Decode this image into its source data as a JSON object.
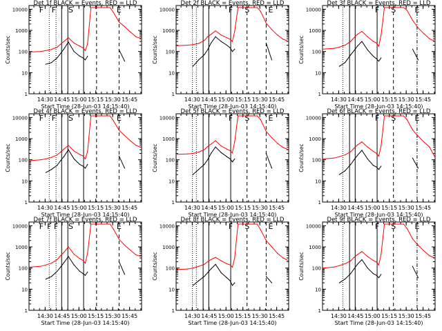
{
  "figure": {
    "xlabel": "Start Time (28-Jun-03 14:15:40)",
    "ylabel": "Counts/sec",
    "xtick_labels": [
      "14:30",
      "14:45",
      "15:00",
      "15:15",
      "15:30",
      "15:45"
    ],
    "ytick_labels": [
      "1",
      "10",
      "100",
      "1000",
      "10000"
    ]
  },
  "chart_data": [
    {
      "type": "line",
      "title": "Det 1f BLACK = Events, RED = LLD",
      "xlabel": "Start Time (28-Jun-03 14:15:40)",
      "ylabel": "Counts/sec",
      "xlim_minutes": [
        0,
        100
      ],
      "ylim": [
        1,
        15000
      ],
      "yscale": "log",
      "x": [
        0,
        10,
        15,
        20,
        25,
        28,
        31,
        35,
        40,
        45,
        48,
        50,
        52,
        55,
        58,
        60,
        62,
        64,
        67,
        70,
        72,
        75,
        80,
        85,
        90,
        95,
        100
      ],
      "series": [
        {
          "name": "LLD",
          "color": "#ff0000",
          "values": [
            95,
            100,
            110,
            125,
            160,
            220,
            300,
            450,
            250,
            180,
            150,
            110,
            230,
            12000,
            12000,
            12000,
            12000,
            12000,
            12000,
            12000,
            12000,
            7000,
            2500,
            1500,
            850,
            500,
            400
          ]
        },
        {
          "name": "Events",
          "color": "#000000",
          "values": [
            null,
            null,
            25,
            30,
            50,
            80,
            130,
            280,
            100,
            60,
            50,
            40,
            60,
            null,
            null,
            null,
            null,
            null,
            null,
            null,
            null,
            null,
            120,
            35,
            null,
            null,
            null
          ]
        }
      ],
      "segment_markers": [
        "F",
        "F",
        "S",
        "E"
      ]
    },
    {
      "type": "line",
      "title": "Det 2f BLACK = Events, RED = LLD",
      "xlabel": "Start Time (28-Jun-03 14:15:40)",
      "ylabel": "Counts/sec",
      "xlim_minutes": [
        0,
        100
      ],
      "ylim": [
        1,
        15000
      ],
      "yscale": "log",
      "x": [
        0,
        10,
        15,
        20,
        25,
        28,
        31,
        35,
        40,
        45,
        48,
        50,
        52,
        55,
        58,
        60,
        62,
        64,
        67,
        70,
        72,
        75,
        80,
        85,
        90,
        95,
        100
      ],
      "series": [
        {
          "name": "LLD",
          "color": "#ff0000",
          "values": [
            190,
            200,
            210,
            240,
            330,
            500,
            650,
            950,
            600,
            450,
            380,
            300,
            900,
            12000,
            12000,
            12000,
            12000,
            12000,
            12000,
            12000,
            12000,
            8000,
            2200,
            1100,
            600,
            380,
            300
          ]
        },
        {
          "name": "Events",
          "color": "#000000",
          "values": [
            null,
            null,
            20,
            40,
            70,
            120,
            250,
            500,
            300,
            200,
            150,
            100,
            130,
            null,
            null,
            null,
            null,
            null,
            null,
            null,
            null,
            null,
            250,
            40,
            null,
            null,
            null
          ]
        }
      ],
      "segment_markers": [
        "F",
        "S",
        "E"
      ]
    },
    {
      "type": "line",
      "title": "Det 3f BLACK = Events, RED = LLD",
      "xlabel": "Start Time (28-Jun-03 14:15:40)",
      "ylabel": "Counts/sec",
      "xlim_minutes": [
        0,
        100
      ],
      "ylim": [
        1,
        15000
      ],
      "yscale": "log",
      "x": [
        0,
        10,
        15,
        20,
        25,
        28,
        31,
        35,
        40,
        45,
        48,
        50,
        52,
        55,
        58,
        60,
        62,
        64,
        67,
        70,
        72,
        75,
        80,
        85,
        90,
        95,
        100
      ],
      "series": [
        {
          "name": "LLD",
          "color": "#ff0000",
          "values": [
            130,
            140,
            160,
            200,
            300,
            450,
            650,
            900,
            500,
            300,
            250,
            180,
            600,
            12000,
            12000,
            12000,
            12000,
            12000,
            12000,
            12000,
            12000,
            9000,
            3000,
            1300,
            700,
            400,
            300
          ]
        },
        {
          "name": "Events",
          "color": "#000000",
          "values": [
            null,
            null,
            20,
            30,
            70,
            110,
            180,
            300,
            120,
            60,
            45,
            35,
            50,
            null,
            null,
            null,
            null,
            null,
            null,
            null,
            null,
            null,
            130,
            40,
            null,
            null,
            null
          ]
        }
      ],
      "segment_markers": [
        "F",
        "S",
        "E"
      ]
    },
    {
      "type": "line",
      "title": "Det 4f BLACK = Events, RED = LLD",
      "xlabel": "Start Time (28-Jun-03 14:15:40)",
      "ylabel": "Counts/sec",
      "xlim_minutes": [
        0,
        100
      ],
      "ylim": [
        1,
        15000
      ],
      "yscale": "log",
      "x": [
        0,
        10,
        15,
        20,
        25,
        28,
        31,
        35,
        40,
        45,
        48,
        50,
        52,
        55,
        58,
        60,
        62,
        64,
        67,
        70,
        72,
        75,
        80,
        85,
        90,
        95,
        100
      ],
      "series": [
        {
          "name": "LLD",
          "color": "#ff0000",
          "values": [
            90,
            100,
            110,
            130,
            170,
            230,
            320,
            480,
            260,
            180,
            150,
            110,
            250,
            12000,
            12000,
            12000,
            12000,
            12000,
            12000,
            12000,
            12000,
            7000,
            2500,
            1400,
            800,
            480,
            380
          ]
        },
        {
          "name": "Events",
          "color": "#000000",
          "values": [
            null,
            null,
            25,
            35,
            55,
            90,
            140,
            300,
            110,
            60,
            50,
            40,
            60,
            null,
            null,
            null,
            null,
            null,
            null,
            null,
            null,
            null,
            150,
            40,
            null,
            null,
            null
          ]
        }
      ],
      "segment_markers": [
        "F",
        "F",
        "S",
        "E"
      ]
    },
    {
      "type": "line",
      "title": "Det 5f BLACK = Events, RED = LLD",
      "xlabel": "Start Time (28-Jun-03 14:15:40)",
      "ylabel": "Counts/sec",
      "xlim_minutes": [
        0,
        100
      ],
      "ylim": [
        1,
        15000
      ],
      "yscale": "log",
      "x": [
        0,
        10,
        15,
        20,
        25,
        28,
        31,
        35,
        40,
        45,
        48,
        50,
        52,
        55,
        58,
        60,
        62,
        64,
        67,
        70,
        72,
        75,
        80,
        85,
        90,
        95,
        100
      ],
      "series": [
        {
          "name": "LLD",
          "color": "#ff0000",
          "values": [
            180,
            190,
            200,
            230,
            300,
            420,
            550,
            800,
            450,
            320,
            270,
            210,
            700,
            12000,
            12000,
            12000,
            12000,
            12000,
            12000,
            12000,
            12000,
            8000,
            2200,
            1100,
            600,
            380,
            300
          ]
        },
        {
          "name": "Events",
          "color": "#000000",
          "values": [
            null,
            null,
            20,
            35,
            60,
            100,
            200,
            400,
            220,
            140,
            110,
            80,
            110,
            null,
            null,
            null,
            null,
            null,
            null,
            null,
            null,
            null,
            200,
            40,
            null,
            null,
            null
          ]
        }
      ],
      "segment_markers": [
        "F",
        "S",
        "E"
      ]
    },
    {
      "type": "line",
      "title": "Det 6f BLACK = Events, RED = LLD",
      "xlabel": "Start Time (28-Jun-03 14:15:40)",
      "ylabel": "Counts/sec",
      "xlim_minutes": [
        0,
        100
      ],
      "ylim": [
        1,
        15000
      ],
      "yscale": "log",
      "x": [
        0,
        10,
        15,
        20,
        25,
        28,
        31,
        35,
        40,
        45,
        48,
        50,
        52,
        55,
        58,
        60,
        62,
        64,
        67,
        70,
        72,
        75,
        80,
        85,
        90,
        95,
        100
      ],
      "series": [
        {
          "name": "LLD",
          "color": "#ff0000",
          "values": [
            110,
            120,
            140,
            170,
            240,
            350,
            500,
            700,
            400,
            250,
            200,
            150,
            450,
            12000,
            12000,
            12000,
            12000,
            12000,
            12000,
            12000,
            12000,
            8000,
            2600,
            1300,
            700,
            400,
            130
          ]
        },
        {
          "name": "Events",
          "color": "#000000",
          "values": [
            null,
            null,
            20,
            30,
            60,
            100,
            160,
            280,
            110,
            55,
            45,
            35,
            50,
            null,
            null,
            null,
            null,
            null,
            null,
            null,
            null,
            null,
            120,
            40,
            null,
            null,
            null
          ]
        }
      ],
      "segment_markers": [
        "F",
        "S",
        "E"
      ]
    },
    {
      "type": "line",
      "title": "Det 7f BLACK = Events, RED = LLD",
      "xlabel": "Start Time (28-Jun-03 14:15:40)",
      "ylabel": "Counts/sec",
      "xlim_minutes": [
        0,
        100
      ],
      "ylim": [
        1,
        15000
      ],
      "yscale": "log",
      "x": [
        0,
        10,
        15,
        20,
        25,
        28,
        31,
        35,
        40,
        45,
        48,
        50,
        52,
        55,
        58,
        60,
        62,
        64,
        67,
        70,
        72,
        75,
        80,
        85,
        90,
        95,
        100
      ],
      "series": [
        {
          "name": "LLD",
          "color": "#ff0000",
          "values": [
            110,
            120,
            140,
            170,
            250,
            380,
            550,
            1000,
            450,
            280,
            230,
            170,
            500,
            12000,
            12000,
            12000,
            12000,
            12000,
            12000,
            12000,
            12000,
            7000,
            2300,
            1200,
            700,
            420,
            350
          ]
        },
        {
          "name": "Events",
          "color": "#000000",
          "values": [
            null,
            null,
            30,
            40,
            70,
            110,
            180,
            350,
            140,
            70,
            55,
            45,
            65,
            null,
            null,
            null,
            null,
            null,
            null,
            null,
            null,
            null,
            200,
            50,
            null,
            null,
            null
          ]
        }
      ],
      "segment_markers": [
        "F",
        "F",
        "F",
        "S",
        "E"
      ]
    },
    {
      "type": "line",
      "title": "Det 8f BLACK = Events, RED = LLD",
      "xlabel": "Start Time (28-Jun-03 14:15:40)",
      "ylabel": "Counts/sec",
      "xlim_minutes": [
        0,
        100
      ],
      "ylim": [
        1,
        15000
      ],
      "yscale": "log",
      "x": [
        0,
        10,
        15,
        20,
        25,
        28,
        31,
        35,
        40,
        45,
        48,
        50,
        52,
        55,
        58,
        60,
        62,
        64,
        67,
        70,
        72,
        75,
        80,
        85,
        90,
        95,
        100
      ],
      "series": [
        {
          "name": "LLD",
          "color": "#ff0000",
          "values": [
            85,
            90,
            100,
            120,
            150,
            200,
            250,
            320,
            220,
            160,
            140,
            110,
            300,
            12000,
            12000,
            12000,
            12000,
            12000,
            12000,
            12000,
            12000,
            6500,
            2000,
            1000,
            500,
            300,
            220
          ]
        },
        {
          "name": "Events",
          "color": "#000000",
          "values": [
            null,
            null,
            15,
            25,
            40,
            60,
            90,
            150,
            60,
            35,
            25,
            15,
            20,
            null,
            null,
            null,
            null,
            null,
            null,
            null,
            null,
            null,
            40,
            20,
            null,
            null,
            null
          ]
        }
      ],
      "segment_markers": [
        "F",
        "S",
        "E"
      ]
    },
    {
      "type": "line",
      "title": "Det 9f BLACK = Events, RED = LLD",
      "xlabel": "Start Time (28-Jun-03 14:15:40)",
      "ylabel": "Counts/sec",
      "xlim_minutes": [
        0,
        100
      ],
      "ylim": [
        1,
        15000
      ],
      "yscale": "log",
      "x": [
        0,
        10,
        15,
        20,
        25,
        28,
        31,
        35,
        40,
        45,
        48,
        50,
        52,
        55,
        58,
        60,
        62,
        64,
        67,
        70,
        72,
        75,
        80,
        85,
        90,
        95,
        100
      ],
      "series": [
        {
          "name": "LLD",
          "color": "#ff0000",
          "values": [
            100,
            110,
            130,
            160,
            220,
            320,
            430,
            600,
            350,
            230,
            190,
            140,
            450,
            12000,
            12000,
            12000,
            12000,
            12000,
            12000,
            12000,
            12000,
            7500,
            2400,
            1200,
            650,
            380,
            300
          ]
        },
        {
          "name": "Events",
          "color": "#000000",
          "values": [
            null,
            null,
            20,
            30,
            55,
            90,
            150,
            250,
            100,
            55,
            45,
            35,
            50,
            null,
            null,
            null,
            null,
            null,
            null,
            null,
            null,
            null,
            120,
            35,
            null,
            null,
            null
          ]
        }
      ],
      "segment_markers": [
        "F",
        "S",
        "E"
      ]
    }
  ]
}
